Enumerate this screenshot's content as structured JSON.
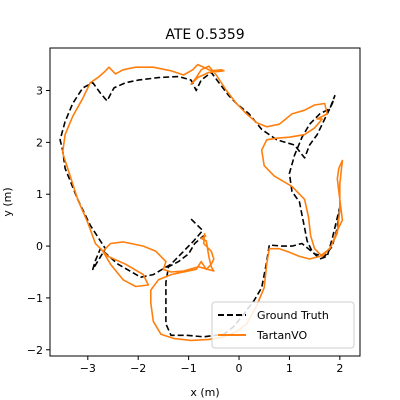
{
  "chart_data": {
    "type": "line",
    "title": "ATE 0.5359",
    "xlabel": "x (m)",
    "ylabel": "y (m)",
    "xlim": [
      -3.75,
      2.4
    ],
    "ylim": [
      -2.12,
      3.82
    ],
    "xticks": [
      -3,
      -2,
      -1,
      0,
      1,
      2
    ],
    "yticks": [
      -2,
      -1,
      0,
      1,
      2,
      3
    ],
    "legend": "lower-right",
    "grid": false,
    "series": [
      {
        "name": "Ground Truth",
        "color": "#000000",
        "style": "dashed",
        "points": [
          [
            -0.95,
            0.52
          ],
          [
            -0.72,
            0.3
          ],
          [
            -0.9,
            0.1
          ],
          [
            -1.35,
            -0.35
          ],
          [
            -1.7,
            -0.55
          ],
          [
            -1.95,
            -0.6
          ],
          [
            -2.4,
            -0.35
          ],
          [
            -2.75,
            -0.05
          ],
          [
            -2.85,
            -0.28
          ],
          [
            -2.9,
            -0.45
          ],
          [
            -2.65,
            -0.05
          ],
          [
            -2.95,
            0.4
          ],
          [
            -3.2,
            0.9
          ],
          [
            -3.45,
            1.5
          ],
          [
            -3.5,
            1.85
          ],
          [
            -3.55,
            2.05
          ],
          [
            -3.45,
            2.4
          ],
          [
            -3.3,
            2.75
          ],
          [
            -3.1,
            3.05
          ],
          [
            -2.9,
            3.15
          ],
          [
            -2.75,
            2.95
          ],
          [
            -2.62,
            2.8
          ],
          [
            -2.48,
            3.05
          ],
          [
            -2.25,
            3.15
          ],
          [
            -2.0,
            3.2
          ],
          [
            -1.6,
            3.25
          ],
          [
            -1.2,
            3.27
          ],
          [
            -0.95,
            3.2
          ],
          [
            -0.85,
            3.0
          ],
          [
            -0.75,
            3.2
          ],
          [
            -0.55,
            3.35
          ],
          [
            -0.4,
            3.15
          ],
          [
            -0.2,
            2.9
          ],
          [
            -0.05,
            2.75
          ],
          [
            0.2,
            2.55
          ],
          [
            0.45,
            2.25
          ],
          [
            0.75,
            2.05
          ],
          [
            1.1,
            1.95
          ],
          [
            1.3,
            1.7
          ],
          [
            1.4,
            1.95
          ],
          [
            1.55,
            2.15
          ],
          [
            1.7,
            2.45
          ],
          [
            1.85,
            2.75
          ],
          [
            1.9,
            2.9
          ],
          [
            1.8,
            2.65
          ],
          [
            1.6,
            2.55
          ],
          [
            1.4,
            2.35
          ],
          [
            1.25,
            2.1
          ],
          [
            1.1,
            1.75
          ],
          [
            1.0,
            1.4
          ],
          [
            1.05,
            1.05
          ],
          [
            1.2,
            0.85
          ],
          [
            1.25,
            0.6
          ],
          [
            1.3,
            0.35
          ],
          [
            1.35,
            0.1
          ],
          [
            1.45,
            -0.1
          ],
          [
            1.6,
            -0.25
          ],
          [
            1.75,
            -0.2
          ],
          [
            1.85,
            0.15
          ],
          [
            1.95,
            0.55
          ],
          [
            2.0,
            0.75
          ],
          [
            1.95,
            0.35
          ],
          [
            1.85,
            0.0
          ],
          [
            1.7,
            -0.2
          ],
          [
            1.5,
            -0.15
          ],
          [
            1.25,
            0.05
          ],
          [
            1.05,
            0.0
          ],
          [
            0.85,
            0.0
          ],
          [
            0.6,
            0.02
          ],
          [
            0.55,
            -0.3
          ],
          [
            0.45,
            -0.8
          ],
          [
            0.3,
            -1.05
          ],
          [
            0.1,
            -1.3
          ],
          [
            -0.1,
            -1.55
          ],
          [
            -0.3,
            -1.7
          ],
          [
            -0.7,
            -1.75
          ],
          [
            -1.05,
            -1.72
          ],
          [
            -1.35,
            -1.72
          ],
          [
            -1.45,
            -1.5
          ],
          [
            -1.45,
            -1.1
          ],
          [
            -1.45,
            -0.7
          ],
          [
            -1.4,
            -0.4
          ],
          [
            -1.2,
            -0.3
          ],
          [
            -1.0,
            -0.15
          ],
          [
            -0.88,
            0.05
          ],
          [
            -0.7,
            0.2
          ]
        ]
      },
      {
        "name": "TartanVO",
        "color": "#ff7f0e",
        "style": "solid",
        "points": [
          [
            -0.65,
            0.2
          ],
          [
            -0.75,
            0.15
          ],
          [
            -0.65,
            0.1
          ],
          [
            -0.6,
            -0.2
          ],
          [
            -0.55,
            -0.4
          ],
          [
            -0.5,
            -0.48
          ],
          [
            -0.8,
            -0.4
          ],
          [
            -1.1,
            -0.48
          ],
          [
            -1.35,
            -0.5
          ],
          [
            -1.5,
            -0.45
          ],
          [
            -1.45,
            -0.3
          ],
          [
            -1.65,
            -0.1
          ],
          [
            -1.9,
            0.0
          ],
          [
            -2.3,
            0.08
          ],
          [
            -2.55,
            0.05
          ],
          [
            -2.7,
            -0.1
          ],
          [
            -2.55,
            -0.35
          ],
          [
            -2.3,
            -0.65
          ],
          [
            -2.05,
            -0.78
          ],
          [
            -1.8,
            -0.75
          ],
          [
            -1.9,
            -0.55
          ],
          [
            -2.25,
            -0.35
          ],
          [
            -2.6,
            -0.2
          ],
          [
            -2.85,
            0.05
          ],
          [
            -3.0,
            0.45
          ],
          [
            -3.2,
            0.9
          ],
          [
            -3.35,
            1.35
          ],
          [
            -3.5,
            1.8
          ],
          [
            -3.45,
            2.15
          ],
          [
            -3.3,
            2.5
          ],
          [
            -3.1,
            2.85
          ],
          [
            -2.95,
            3.15
          ],
          [
            -2.8,
            3.25
          ],
          [
            -2.68,
            3.35
          ],
          [
            -2.58,
            3.45
          ],
          [
            -2.45,
            3.32
          ],
          [
            -2.3,
            3.4
          ],
          [
            -2.05,
            3.45
          ],
          [
            -1.7,
            3.45
          ],
          [
            -1.35,
            3.38
          ],
          [
            -1.1,
            3.3
          ],
          [
            -0.92,
            3.4
          ],
          [
            -0.82,
            3.5
          ],
          [
            -0.75,
            3.47
          ],
          [
            -0.55,
            3.38
          ],
          [
            -0.35,
            3.4
          ],
          [
            -0.3,
            3.38
          ],
          [
            -0.6,
            3.35
          ],
          [
            -0.82,
            3.25
          ],
          [
            -0.95,
            3.12
          ],
          [
            -0.85,
            3.25
          ],
          [
            -0.75,
            3.4
          ],
          [
            -0.6,
            3.47
          ],
          [
            -0.45,
            3.3
          ],
          [
            -0.25,
            3.0
          ],
          [
            -0.05,
            2.75
          ],
          [
            0.15,
            2.55
          ],
          [
            0.35,
            2.38
          ],
          [
            0.55,
            2.3
          ],
          [
            0.8,
            2.35
          ],
          [
            1.05,
            2.55
          ],
          [
            1.3,
            2.62
          ],
          [
            1.5,
            2.72
          ],
          [
            1.7,
            2.75
          ],
          [
            1.75,
            2.55
          ],
          [
            1.55,
            2.45
          ],
          [
            1.65,
            2.45
          ],
          [
            1.5,
            2.28
          ],
          [
            1.3,
            2.15
          ],
          [
            1.0,
            2.1
          ],
          [
            0.75,
            2.08
          ],
          [
            0.55,
            2.05
          ],
          [
            0.45,
            1.85
          ],
          [
            0.5,
            1.55
          ],
          [
            0.7,
            1.35
          ],
          [
            1.05,
            1.15
          ],
          [
            1.3,
            0.9
          ],
          [
            1.38,
            0.55
          ],
          [
            1.42,
            0.2
          ],
          [
            1.5,
            -0.05
          ],
          [
            1.65,
            -0.2
          ],
          [
            1.82,
            -0.02
          ],
          [
            1.95,
            0.3
          ],
          [
            2.05,
            0.5
          ],
          [
            2.0,
            0.9
          ],
          [
            1.95,
            1.3
          ],
          [
            1.98,
            1.5
          ],
          [
            2.05,
            1.65
          ],
          [
            2.0,
            1.2
          ],
          [
            2.0,
            0.7
          ],
          [
            1.95,
            0.25
          ],
          [
            1.8,
            -0.05
          ],
          [
            1.6,
            -0.2
          ],
          [
            1.4,
            -0.25
          ],
          [
            1.2,
            -0.2
          ],
          [
            1.0,
            -0.12
          ],
          [
            0.8,
            -0.05
          ],
          [
            0.6,
            -0.05
          ],
          [
            0.55,
            -0.35
          ],
          [
            0.5,
            -0.8
          ],
          [
            0.35,
            -1.15
          ],
          [
            0.15,
            -1.5
          ],
          [
            -0.05,
            -1.65
          ],
          [
            -0.3,
            -1.75
          ],
          [
            -0.6,
            -1.8
          ],
          [
            -0.95,
            -1.82
          ],
          [
            -1.3,
            -1.78
          ],
          [
            -1.55,
            -1.7
          ],
          [
            -1.7,
            -1.45
          ],
          [
            -1.75,
            -1.1
          ],
          [
            -1.75,
            -0.85
          ],
          [
            -1.6,
            -0.65
          ],
          [
            -1.35,
            -0.55
          ],
          [
            -1.1,
            -0.5
          ],
          [
            -0.85,
            -0.45
          ],
          [
            -0.75,
            -0.3
          ],
          [
            -0.65,
            -0.45
          ],
          [
            -0.55,
            -0.35
          ],
          [
            -0.5,
            -0.25
          ],
          [
            -0.55,
            -0.1
          ],
          [
            -0.7,
            0.05
          ],
          [
            -0.68,
            0.25
          ]
        ]
      }
    ]
  }
}
